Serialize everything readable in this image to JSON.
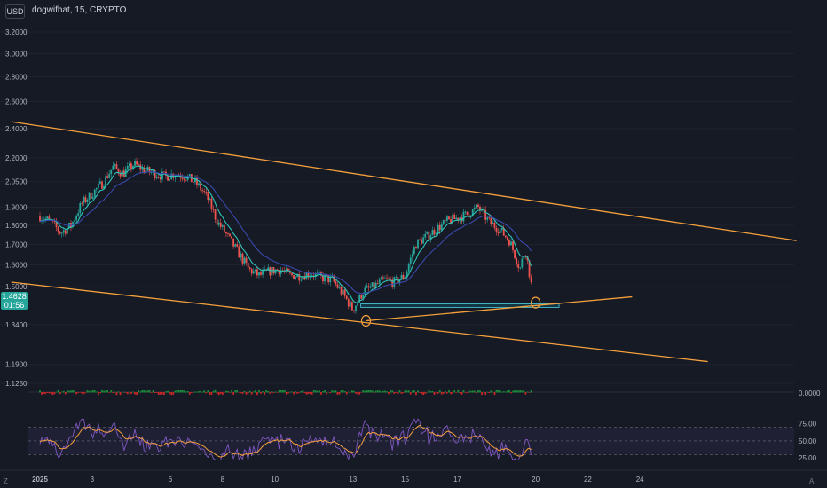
{
  "header": {
    "currency_button": "USD",
    "symbol_line": "dogwifhat, 15, CRYPTO"
  },
  "last_price": {
    "value": "1.4628",
    "countdown": "01:56"
  },
  "corner_labels": {
    "left": "Z",
    "right": "A"
  },
  "colors": {
    "background": "#161a25",
    "candle_up": "#26a69a",
    "candle_down": "#ef5350",
    "channel_line": "#f5a03c",
    "ema_fast": "#2ec4b6",
    "ema_slow": "#3949ab",
    "rsi_line": "#7e57c2",
    "rsi_ma": "#f5a03c"
  },
  "chart_data": [
    {
      "type": "candlestick",
      "y_tick_labels": [
        "3.2000",
        "3.0000",
        "2.8000",
        "2.6000",
        "2.4000",
        "2.2000",
        "2.0500",
        "1.9000",
        "1.8000",
        "1.7000",
        "1.6000",
        "1.5000",
        "1.3400",
        "1.1900",
        "1.1250"
      ],
      "y_scale": "log",
      "x_tick_labels": [
        "2025",
        "3",
        "6",
        "8",
        "10",
        "13",
        "15",
        "17",
        "20",
        "22",
        "24"
      ],
      "price_path": {
        "x_day": [
          1.0,
          1.4,
          1.8,
          2.2,
          2.6,
          3.0,
          3.4,
          3.8,
          4.2,
          4.6,
          5.0,
          5.4,
          5.8,
          6.2,
          6.6,
          7.0,
          7.4,
          7.8,
          8.2,
          8.6,
          9.0,
          9.4,
          9.8,
          10.2,
          10.6,
          11.0,
          11.4,
          11.8,
          12.2,
          12.6,
          13.0,
          13.4,
          13.8,
          14.2,
          14.6,
          15.0,
          15.4,
          15.8,
          16.2,
          16.6,
          17.0,
          17.4,
          17.8,
          18.2,
          18.6,
          19.0,
          19.4,
          19.6,
          19.9
        ],
        "close": [
          1.85,
          1.82,
          1.76,
          1.8,
          1.92,
          1.98,
          2.04,
          2.14,
          2.1,
          2.16,
          2.12,
          2.1,
          2.08,
          2.1,
          2.08,
          2.04,
          1.96,
          1.82,
          1.74,
          1.66,
          1.58,
          1.55,
          1.57,
          1.58,
          1.55,
          1.55,
          1.56,
          1.54,
          1.53,
          1.47,
          1.4,
          1.48,
          1.5,
          1.53,
          1.52,
          1.55,
          1.7,
          1.74,
          1.78,
          1.82,
          1.84,
          1.86,
          1.9,
          1.82,
          1.78,
          1.72,
          1.58,
          1.68,
          1.46
        ]
      },
      "channel_lines": [
        {
          "name": "",
          "from": {
            "x_day": -0.1,
            "price": 2.45
          },
          "to": {
            "x_day": 30.0,
            "price": 1.72
          }
        },
        {
          "name": "",
          "from": {
            "x_day": -0.1,
            "price": 1.52
          },
          "to": {
            "x_day": 26.6,
            "price": 1.2
          }
        },
        {
          "name": "",
          "from": {
            "x_day": 13.5,
            "price": 1.355
          },
          "to": {
            "x_day": 23.7,
            "price": 1.455
          }
        }
      ],
      "support_zone": {
        "x_from_day": 13.3,
        "x_to_day": 20.9,
        "price_low": 1.41,
        "price_high": 1.425
      },
      "marked_lows": [
        {
          "x_day": 13.5,
          "price": 1.355
        },
        {
          "x_day": 20.0,
          "price": 1.43
        }
      ],
      "current_price": 1.4628
    },
    {
      "type": "histogram",
      "y_tick_labels": [
        "0.0000"
      ],
      "baseline": 0
    },
    {
      "type": "line",
      "y_tick_labels": [
        "75.00",
        "50.00",
        "25.00"
      ],
      "ylim": [
        20,
        85
      ],
      "bands": {
        "upper": 70,
        "middle": 50,
        "lower": 30
      }
    }
  ]
}
